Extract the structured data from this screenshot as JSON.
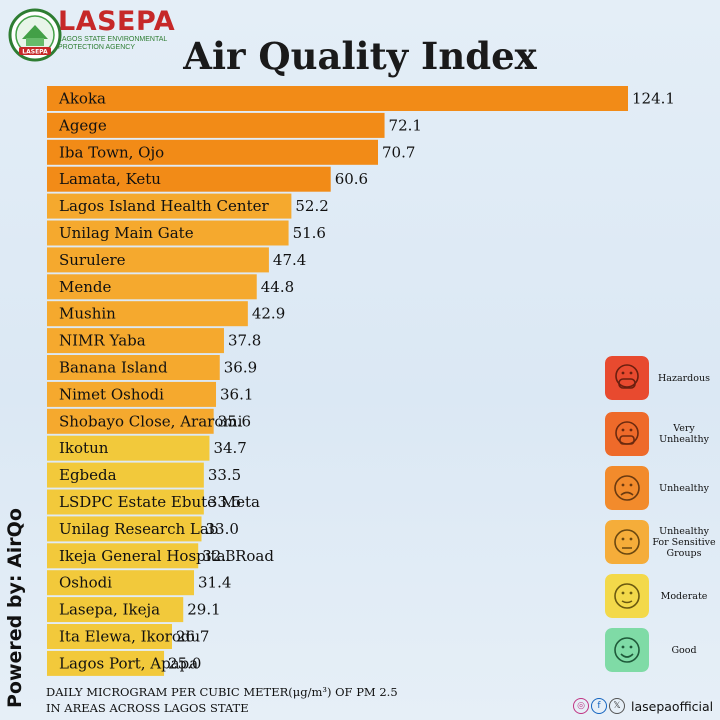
{
  "brand": {
    "name": "LASEPA",
    "subtitle": "Lagos State Environmental Protection Agency",
    "badge": "LASEPA"
  },
  "powered_by": "Powered by: AirQo",
  "footnote": {
    "line1": "DAILY MICROGRAM PER CUBIC METER(μg/m³) OF PM 2.5",
    "line2": "IN AREAS ACROSS LAGOS STATE"
  },
  "legend": [
    {
      "label": "Hazardous",
      "color": "#e84a2f",
      "icon": "hazardous-face-icon"
    },
    {
      "label": "Very Unhealthy",
      "color": "#ee6a2a",
      "icon": "very-unhealthy-face-icon"
    },
    {
      "label": "Unhealthy",
      "color": "#f28b2c",
      "icon": "unhealthy-face-icon"
    },
    {
      "label": "Unhealthy For Sensitive Groups",
      "color": "#f5ad3a",
      "icon": "sensitive-face-icon"
    },
    {
      "label": "Moderate",
      "color": "#f3d94a",
      "icon": "moderate-face-icon"
    },
    {
      "label": "Good",
      "color": "#7fdba6",
      "icon": "good-face-icon"
    }
  ],
  "social": {
    "handle": "lasepaofficial",
    "icons": [
      "instagram-icon",
      "facebook-icon",
      "x-icon"
    ]
  },
  "chart_data": {
    "type": "bar",
    "orientation": "horizontal",
    "title": "Air Quality Index",
    "categories": [
      "Akoka",
      "Agege",
      "Iba Town, Ojo",
      "Lamata, Ketu",
      "Lagos Island Health Center",
      "Unilag Main Gate",
      "Surulere",
      "Mende",
      "Mushin",
      "NIMR Yaba",
      "Banana Island",
      "Nimet Oshodi",
      "Shobayo Close, Araromi",
      "Ikotun",
      "Egbeda",
      "LSDPC Estate Ebute Meta",
      "Unilag Research Lab",
      "Ikeja General Hospital Road",
      "Oshodi",
      "Lasepa, Ikeja",
      "Ita Elewa, Ikorodu",
      "Lagos Port, Apapa"
    ],
    "values": [
      124.1,
      72.1,
      70.7,
      60.6,
      52.2,
      51.6,
      47.4,
      44.8,
      42.9,
      37.8,
      36.9,
      36.1,
      35.6,
      34.7,
      33.5,
      33.5,
      33.0,
      32.3,
      31.4,
      29.1,
      26.7,
      25.0
    ],
    "value_labels": [
      "124.1",
      "72.1",
      "70.7",
      "60.6",
      "52.2",
      "51.6",
      "47.4",
      "44.8",
      "42.9",
      "37.8",
      "36.9",
      "36.1",
      "35.6",
      "34.7",
      "33.5",
      "33.5",
      "33.0",
      "32.3",
      "31.4",
      "29.1",
      "26.7",
      "25.0"
    ],
    "bar_colors": [
      "#f28b17",
      "#f28b17",
      "#f28b17",
      "#f28b17",
      "#f5a92e",
      "#f5a92e",
      "#f5a92e",
      "#f5a92e",
      "#f5a92e",
      "#f5a92e",
      "#f5a92e",
      "#f5a92e",
      "#f5a92e",
      "#f2c93b",
      "#f2c93b",
      "#f2c93b",
      "#f2c93b",
      "#f2c93b",
      "#f2c93b",
      "#f2c93b",
      "#f2c93b",
      "#f2c93b"
    ],
    "xlabel": "",
    "ylabel": "",
    "grid": false,
    "legend_position": "right"
  }
}
